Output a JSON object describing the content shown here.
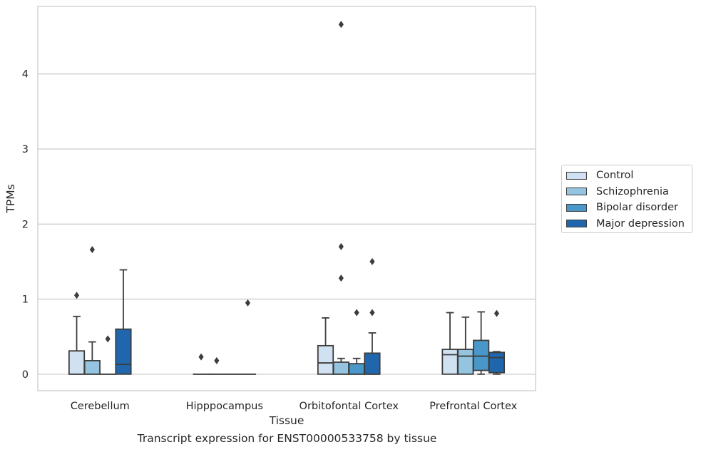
{
  "caption": "Transcript expression for ENST00000533758 by tissue",
  "chart_data": {
    "type": "box",
    "xlabel": "Tissue",
    "ylabel": "TPMs",
    "ylim": [
      -0.22,
      4.9
    ],
    "yticks": [
      0,
      1,
      2,
      3,
      4
    ],
    "grid": "horizontal",
    "legend_position": "right",
    "categories": [
      "Cerebellum",
      "Hipppocampus",
      "Orbitofontal Cortex",
      "Prefrontal Cortex"
    ],
    "series": [
      {
        "name": "Control",
        "color": "#d0e1f2",
        "boxes": [
          {
            "q1": 0.0,
            "median": 0.0,
            "q3": 0.31,
            "whisker_low": 0.0,
            "whisker_high": 0.77,
            "outliers": [
              1.05
            ]
          },
          {
            "q1": 0.0,
            "median": 0.0,
            "q3": 0.0,
            "whisker_low": 0.0,
            "whisker_high": 0.0,
            "outliers": [
              0.23
            ]
          },
          {
            "q1": 0.0,
            "median": 0.15,
            "q3": 0.38,
            "whisker_low": 0.0,
            "whisker_high": 0.75,
            "outliers": []
          },
          {
            "q1": 0.0,
            "median": 0.26,
            "q3": 0.33,
            "whisker_low": 0.0,
            "whisker_high": 0.82,
            "outliers": []
          }
        ]
      },
      {
        "name": "Schizophrenia",
        "color": "#94c4df",
        "boxes": [
          {
            "q1": 0.0,
            "median": 0.0,
            "q3": 0.18,
            "whisker_low": 0.0,
            "whisker_high": 0.43,
            "outliers": [
              1.66
            ]
          },
          {
            "q1": 0.0,
            "median": 0.0,
            "q3": 0.0,
            "whisker_low": 0.0,
            "whisker_high": 0.0,
            "outliers": [
              0.18
            ]
          },
          {
            "q1": 0.0,
            "median": 0.0,
            "q3": 0.16,
            "whisker_low": 0.0,
            "whisker_high": 0.21,
            "outliers": [
              1.28,
              1.7,
              4.66
            ]
          },
          {
            "q1": 0.0,
            "median": 0.24,
            "q3": 0.33,
            "whisker_low": 0.0,
            "whisker_high": 0.76,
            "outliers": []
          }
        ]
      },
      {
        "name": "Bipolar disorder",
        "color": "#4a98c9",
        "boxes": [
          {
            "q1": 0.0,
            "median": 0.0,
            "q3": 0.0,
            "whisker_low": 0.0,
            "whisker_high": 0.0,
            "outliers": [
              0.47
            ]
          },
          {
            "q1": 0.0,
            "median": 0.0,
            "q3": 0.0,
            "whisker_low": 0.0,
            "whisker_high": 0.0,
            "outliers": []
          },
          {
            "q1": 0.0,
            "median": 0.0,
            "q3": 0.14,
            "whisker_low": 0.0,
            "whisker_high": 0.21,
            "outliers": [
              0.82
            ]
          },
          {
            "q1": 0.05,
            "median": 0.24,
            "q3": 0.45,
            "whisker_low": 0.0,
            "whisker_high": 0.83,
            "outliers": []
          }
        ]
      },
      {
        "name": "Major depression",
        "color": "#2066ac",
        "boxes": [
          {
            "q1": 0.0,
            "median": 0.13,
            "q3": 0.6,
            "whisker_low": 0.0,
            "whisker_high": 1.39,
            "outliers": []
          },
          {
            "q1": 0.0,
            "median": 0.0,
            "q3": 0.0,
            "whisker_low": 0.0,
            "whisker_high": 0.0,
            "outliers": [
              0.95
            ]
          },
          {
            "q1": 0.0,
            "median": 0.0,
            "q3": 0.28,
            "whisker_low": 0.0,
            "whisker_high": 0.55,
            "outliers": [
              0.82,
              1.5
            ]
          },
          {
            "q1": 0.02,
            "median": 0.22,
            "q3": 0.29,
            "whisker_low": 0.0,
            "whisker_high": 0.3,
            "outliers": [
              0.81
            ]
          }
        ]
      }
    ]
  }
}
